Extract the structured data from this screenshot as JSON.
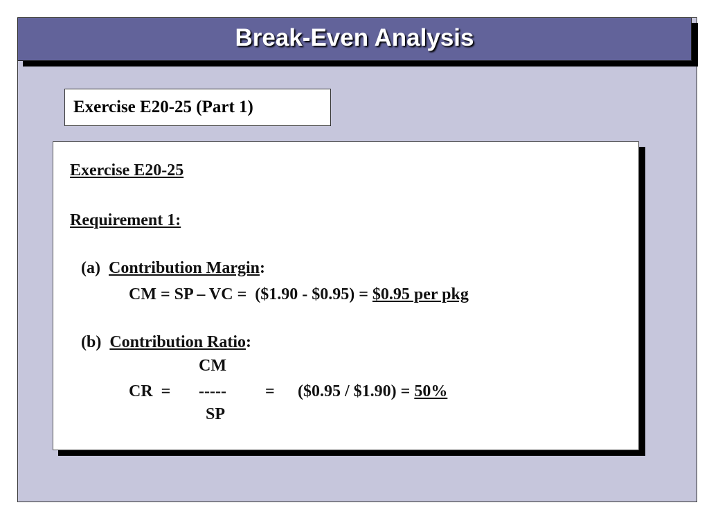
{
  "header": {
    "title": "Break-Even Analysis"
  },
  "subtitle": "Exercise E20-25 (Part 1)",
  "content": {
    "heading": "Exercise E20-25",
    "requirement": "Requirement 1:",
    "part_a": {
      "label": "(a)",
      "term": "Contribution Margin",
      "colon": ":",
      "formula": "CM = SP – VC =  ($1.90 - $0.95) =",
      "result": "$0.95 per pkg"
    },
    "part_b": {
      "label": "(b)",
      "term": "Contribution Ratio",
      "colon": ":",
      "numerator": "CM",
      "lhs": "CR  =",
      "bar": "-----",
      "equals": "=",
      "formula": "($0.95 / $1.90) =",
      "result": "50%",
      "denominator": "SP"
    }
  }
}
